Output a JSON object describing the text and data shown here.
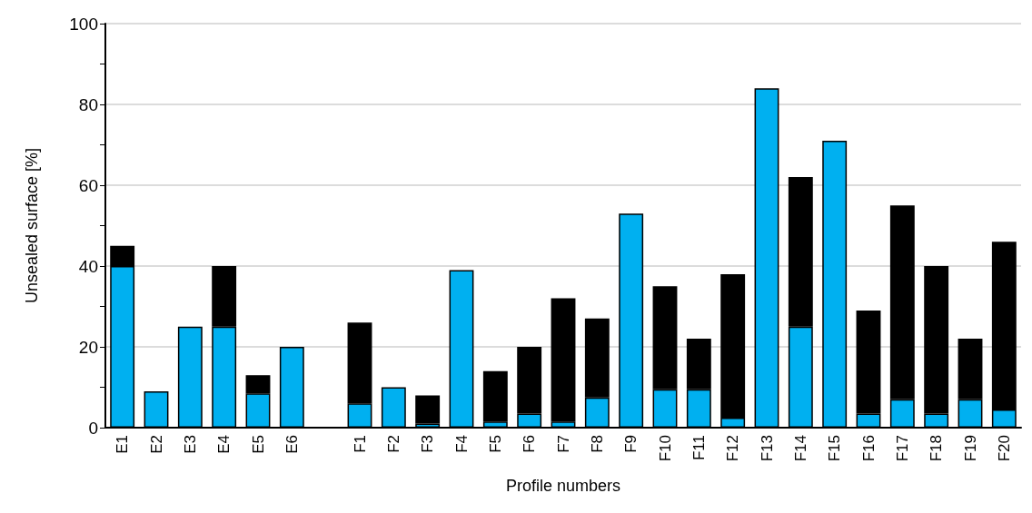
{
  "chart_data": {
    "type": "bar",
    "stacked": true,
    "xlabel": "Profile numbers",
    "ylabel": "Unsealed surface [%]",
    "categories": [
      "E1",
      "E2",
      "E3",
      "E4",
      "E5",
      "E6",
      null,
      "F1",
      "F2",
      "F3",
      "F4",
      "F5",
      "F6",
      "F7",
      "F8",
      "F9",
      "F10",
      "F11",
      "F12",
      "F13",
      "F14",
      "F15",
      "F16",
      "F17",
      "F18",
      "F19",
      "F20"
    ],
    "series": [
      {
        "color": "#00b0f0",
        "values": [
          40,
          9,
          25,
          25,
          8.5,
          20,
          null,
          6,
          10,
          1,
          39,
          1.5,
          3.5,
          1.5,
          7.5,
          53,
          9.5,
          9.5,
          2.5,
          84,
          25,
          71,
          3.5,
          7,
          3.5,
          7,
          4.5
        ]
      },
      {
        "color": "#000000",
        "values": [
          5,
          null,
          null,
          15,
          4.5,
          null,
          null,
          20,
          null,
          7,
          null,
          12.5,
          16.5,
          30.5,
          19.5,
          null,
          25.5,
          12.5,
          35.5,
          null,
          37,
          null,
          25.5,
          48,
          36.5,
          15,
          41.5
        ]
      }
    ],
    "ylim": [
      0,
      100
    ],
    "yticks": [
      0,
      {
        "value": 10,
        "label": null
      },
      20,
      {
        "value": 30,
        "label": null
      },
      40,
      {
        "value": 50,
        "label": null
      },
      60,
      {
        "value": 70,
        "label": null
      },
      80,
      {
        "value": 90,
        "label": null
      },
      100
    ],
    "grid": "y"
  }
}
